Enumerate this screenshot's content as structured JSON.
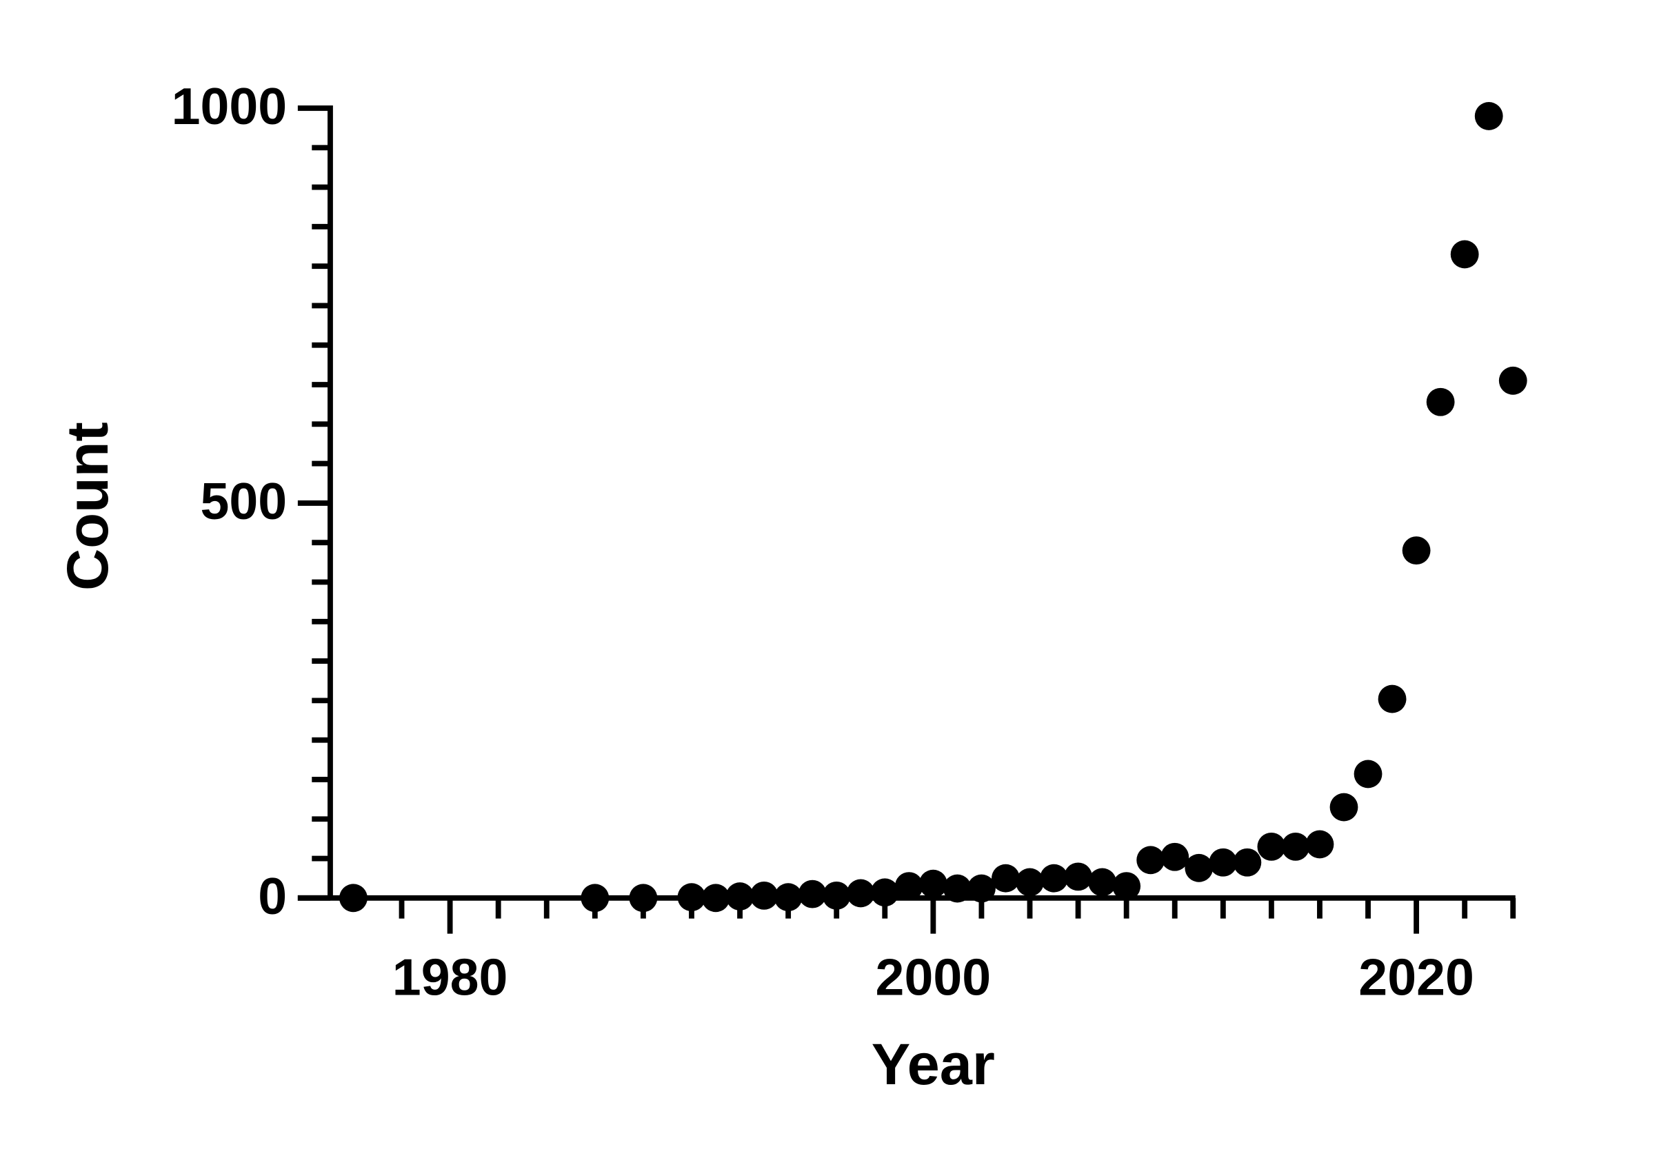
{
  "chart_data": {
    "type": "scatter",
    "x_label": "Year",
    "y_label": "Count",
    "x": [
      1976,
      1986,
      1988,
      1990,
      1991,
      1992,
      1993,
      1994,
      1995,
      1996,
      1997,
      1998,
      1999,
      2000,
      2001,
      2002,
      2003,
      2004,
      2005,
      2006,
      2007,
      2008,
      2009,
      2010,
      2011,
      2012,
      2013,
      2014,
      2015,
      2016,
      2017,
      2018,
      2019,
      2020,
      2021,
      2022,
      2023,
      2024
    ],
    "values": [
      0,
      0,
      0,
      1,
      0,
      2,
      3,
      1,
      5,
      3,
      6,
      7,
      15,
      18,
      12,
      12,
      25,
      20,
      25,
      27,
      20,
      15,
      48,
      52,
      38,
      45,
      45,
      65,
      65,
      68,
      115,
      157,
      252,
      440,
      628,
      815,
      990,
      655
    ],
    "color": "#000000",
    "xlim": [
      1973.7,
      2024.1
    ],
    "ylim": [
      0,
      1000
    ],
    "xticks": [
      1980,
      2000,
      2020
    ],
    "xminorticks": [
      1978,
      1982,
      1984,
      1986,
      1988,
      1990,
      1992,
      1994,
      1996,
      1998,
      2002,
      2004,
      2006,
      2008,
      2010,
      2012,
      2014,
      2016,
      2018,
      2022,
      2024
    ],
    "yticks": [
      0,
      500,
      1000
    ],
    "yminorticks": [
      50,
      100,
      150,
      200,
      250,
      300,
      350,
      400,
      450,
      550,
      600,
      650,
      700,
      750,
      800,
      850,
      900,
      950
    ],
    "grid": false
  }
}
